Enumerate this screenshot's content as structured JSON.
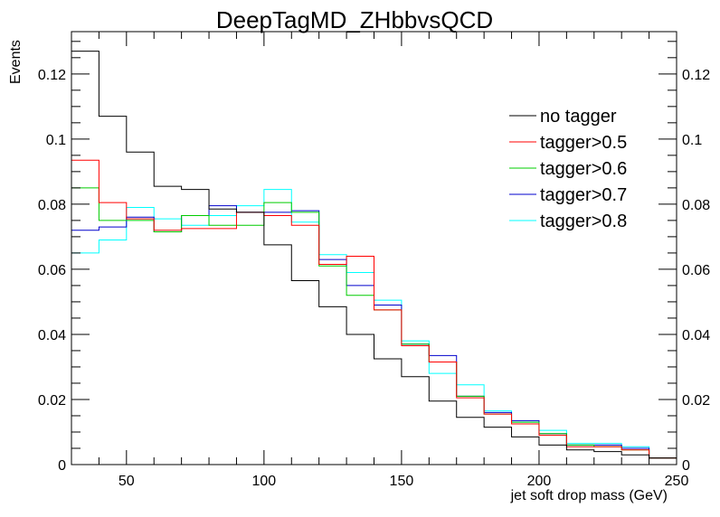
{
  "chart_data": {
    "type": "histogram",
    "title": "DeepTagMD_ZHbbvsQCD",
    "xlabel": "jet soft drop mass (GeV)",
    "ylabel": "Events",
    "xlim": [
      30,
      250
    ],
    "ylim": [
      0,
      0.133
    ],
    "xticks": [
      50,
      100,
      150,
      200,
      250
    ],
    "yticks": [
      0,
      0.02,
      0.04,
      0.06,
      0.08,
      0.1,
      0.12
    ],
    "ytick_labels": [
      "0",
      "0.02",
      "0.04",
      "0.06",
      "0.08",
      "0.1",
      "0.12"
    ],
    "bin_edges": [
      30,
      40,
      50,
      60,
      70,
      80,
      90,
      100,
      110,
      120,
      130,
      140,
      150,
      160,
      170,
      180,
      190,
      200,
      210,
      220,
      230,
      240,
      250
    ],
    "grid": false,
    "legend_position": "top-right",
    "series": [
      {
        "name": "no tagger",
        "color": "#000000",
        "values": [
          0.127,
          0.107,
          0.096,
          0.0855,
          0.0845,
          0.0785,
          0.0775,
          0.0675,
          0.0565,
          0.0485,
          0.04,
          0.0325,
          0.027,
          0.0195,
          0.0145,
          0.0115,
          0.0085,
          0.006,
          0.0045,
          0.004,
          0.003,
          0.002
        ]
      },
      {
        "name": "tagger>0.5",
        "color": "#ff0000",
        "values": [
          0.0935,
          0.0805,
          0.0755,
          0.072,
          0.0725,
          0.0725,
          0.0775,
          0.0765,
          0.0735,
          0.0615,
          0.064,
          0.0475,
          0.0365,
          0.0315,
          0.0205,
          0.0155,
          0.0125,
          0.009,
          0.0055,
          0.0055,
          0.0045,
          0.002
        ]
      },
      {
        "name": "tagger>0.6",
        "color": "#00cc00",
        "values": [
          0.085,
          0.075,
          0.075,
          0.0715,
          0.0765,
          0.0735,
          0.0735,
          0.0805,
          0.0775,
          0.061,
          0.052,
          0.0475,
          0.037,
          0.0315,
          0.021,
          0.0155,
          0.013,
          0.0095,
          0.006,
          0.0055,
          0.0045,
          0.002
        ]
      },
      {
        "name": "tagger>0.7",
        "color": "#0000cc",
        "values": [
          0.072,
          0.073,
          0.076,
          0.0715,
          0.0765,
          0.0795,
          0.0775,
          0.0775,
          0.078,
          0.063,
          0.055,
          0.049,
          0.037,
          0.0335,
          0.021,
          0.016,
          0.0135,
          0.0095,
          0.006,
          0.006,
          0.005,
          0.002
        ]
      },
      {
        "name": "tagger>0.8",
        "color": "#00ffff",
        "values": [
          0.065,
          0.069,
          0.079,
          0.0755,
          0.0735,
          0.0765,
          0.0795,
          0.0845,
          0.0745,
          0.0645,
          0.059,
          0.0505,
          0.038,
          0.028,
          0.0245,
          0.0165,
          0.013,
          0.0105,
          0.0065,
          0.0065,
          0.0055,
          0.002
        ]
      }
    ]
  }
}
